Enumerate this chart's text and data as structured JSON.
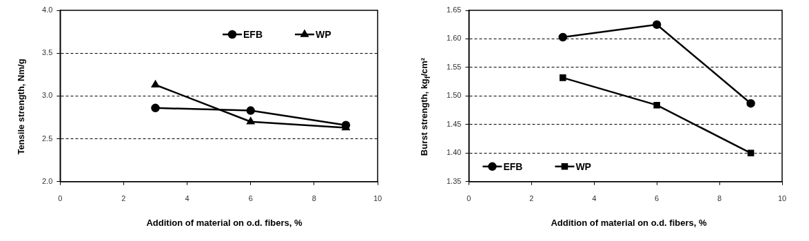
{
  "chart_data": [
    {
      "type": "line",
      "xlabel": "Addition of material on o.d. fibers, %",
      "ylabel": "Tensile strength, Nm/g",
      "x": [
        3,
        6,
        9
      ],
      "series": [
        {
          "name": "EFB",
          "color": "#000000",
          "marker": "circle",
          "values": [
            2.86,
            2.83,
            2.66
          ]
        },
        {
          "name": "WP",
          "color": "#000000",
          "marker": "triangle",
          "values": [
            3.13,
            2.7,
            2.63
          ]
        }
      ],
      "xlim": [
        0,
        10
      ],
      "xticks": [
        0,
        2,
        4,
        6,
        8,
        10
      ],
      "ylim": [
        2.0,
        4.0
      ],
      "yticks": [
        {
          "value": 2.0,
          "label": "2.0"
        },
        {
          "value": 2.5,
          "label": "2.5"
        },
        {
          "value": 3.0,
          "label": "3.0"
        },
        {
          "value": 3.5,
          "label": "3.5"
        },
        {
          "value": 4.0,
          "label": "4.0"
        }
      ],
      "grid": "y",
      "legend": "top right",
      "line_style": "solid"
    },
    {
      "type": "line",
      "xlabel": "Addition of material on o.d. fibers, %",
      "ylabel": "Burst strength, kg$_{f}$/cm²",
      "x": [
        3,
        6,
        9
      ],
      "series": [
        {
          "name": "EFB",
          "color": "#000000",
          "marker": "circle",
          "values": [
            1.603,
            1.625,
            1.487
          ]
        },
        {
          "name": "WP",
          "color": "#000000",
          "marker": "square",
          "values": [
            1.532,
            1.484,
            1.4
          ]
        }
      ],
      "xlim": [
        0,
        10
      ],
      "xticks": [
        0,
        2,
        4,
        6,
        8,
        10
      ],
      "ylim": [
        1.35,
        1.65
      ],
      "yticks": [
        {
          "value": 1.35,
          "label": "1.35"
        },
        {
          "value": 1.4,
          "label": "1.40"
        },
        {
          "value": 1.45,
          "label": "1.45"
        },
        {
          "value": 1.5,
          "label": "1.50"
        },
        {
          "value": 1.55,
          "label": "1.55"
        },
        {
          "value": 1.6,
          "label": "1.60"
        },
        {
          "value": 1.65,
          "label": "1.65"
        }
      ],
      "grid": "y",
      "legend": "bottom left",
      "line_style": "solid"
    }
  ]
}
